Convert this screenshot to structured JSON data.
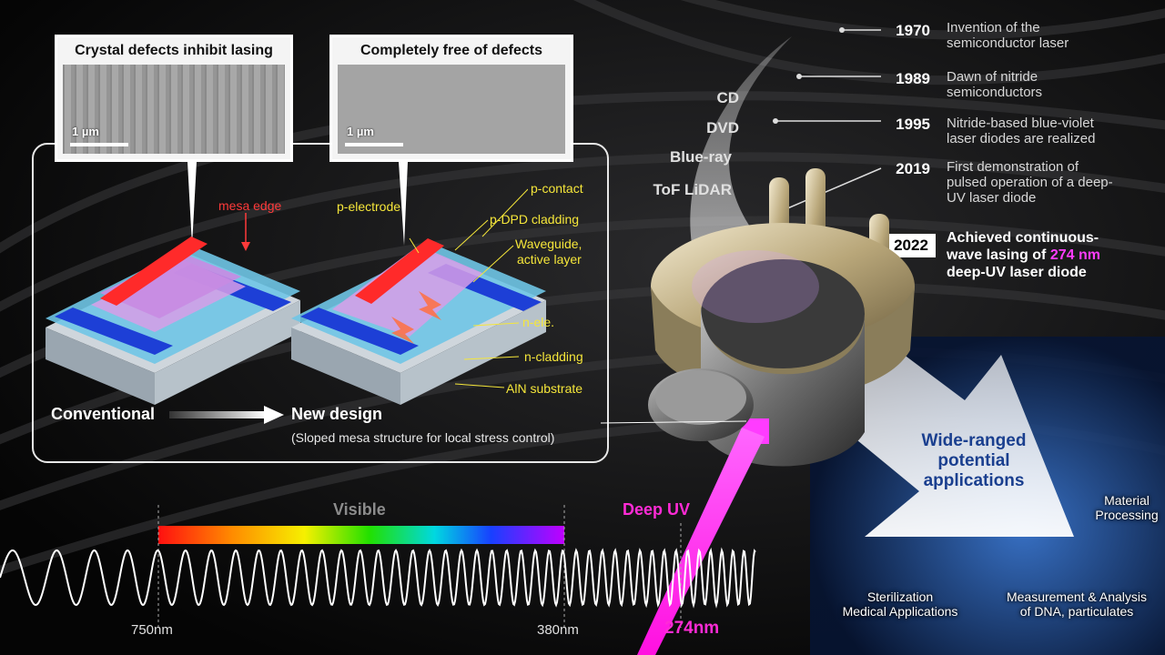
{
  "panels": {
    "left_title": "Crystal defects inhibit lasing",
    "right_title": "Completely free of defects",
    "left_scale": "1 µm",
    "right_scale": "1 µm"
  },
  "device": {
    "mesa_edge": "mesa edge",
    "p_electrode": "p-electrode",
    "p_contact": "p-contact",
    "p_dpd": "p-DPD cladding",
    "waveguide_1": "Waveguide,",
    "waveguide_2": "active layer",
    "n_ele": "n-ele.",
    "n_cladding": "n-cladding",
    "substrate": "AlN substrate",
    "conventional": "Conventional",
    "new_design": "New design",
    "new_design_note": "(Sloped mesa structure for local stress control)"
  },
  "timeline": [
    {
      "year": "1970",
      "line1": "Invention of the",
      "line2": "semiconductor laser"
    },
    {
      "year": "1989",
      "line1": "Dawn of nitride",
      "line2": "semiconductors"
    },
    {
      "year": "1995",
      "line1": "Nitride-based blue-violet",
      "line2": "laser diodes are realized"
    },
    {
      "year": "2019",
      "line1": "First demonstration of",
      "line2": "pulsed operation of a deep-",
      "line3": "UV laser diode"
    }
  ],
  "milestone": {
    "year": "2022",
    "line1": "Achieved continuous-",
    "line2_a": "wave lasing of ",
    "line2_b": "274 nm",
    "line3": "deep-UV laser diode",
    "highlight_color": "#ff3cff"
  },
  "media": [
    "CD",
    "DVD",
    "Blue-ray",
    "ToF LiDAR"
  ],
  "applications": {
    "title_1": "Wide-ranged",
    "title_2": "potential",
    "title_3": "applications",
    "title_color": "#1a3f8f",
    "material_1": "Material",
    "material_2": "Processing",
    "steril_1": "Sterilization",
    "steril_2": "Medical Applications",
    "dna_1": "Measurement & Analysis",
    "dna_2": "of DNA, particulates"
  },
  "spectrum": {
    "visible": "Visible",
    "deep_uv": "Deep UV",
    "nm_750": "750nm",
    "nm_380": "380nm",
    "nm_274": "274nm",
    "deep_uv_color": "#ff2bd6"
  }
}
